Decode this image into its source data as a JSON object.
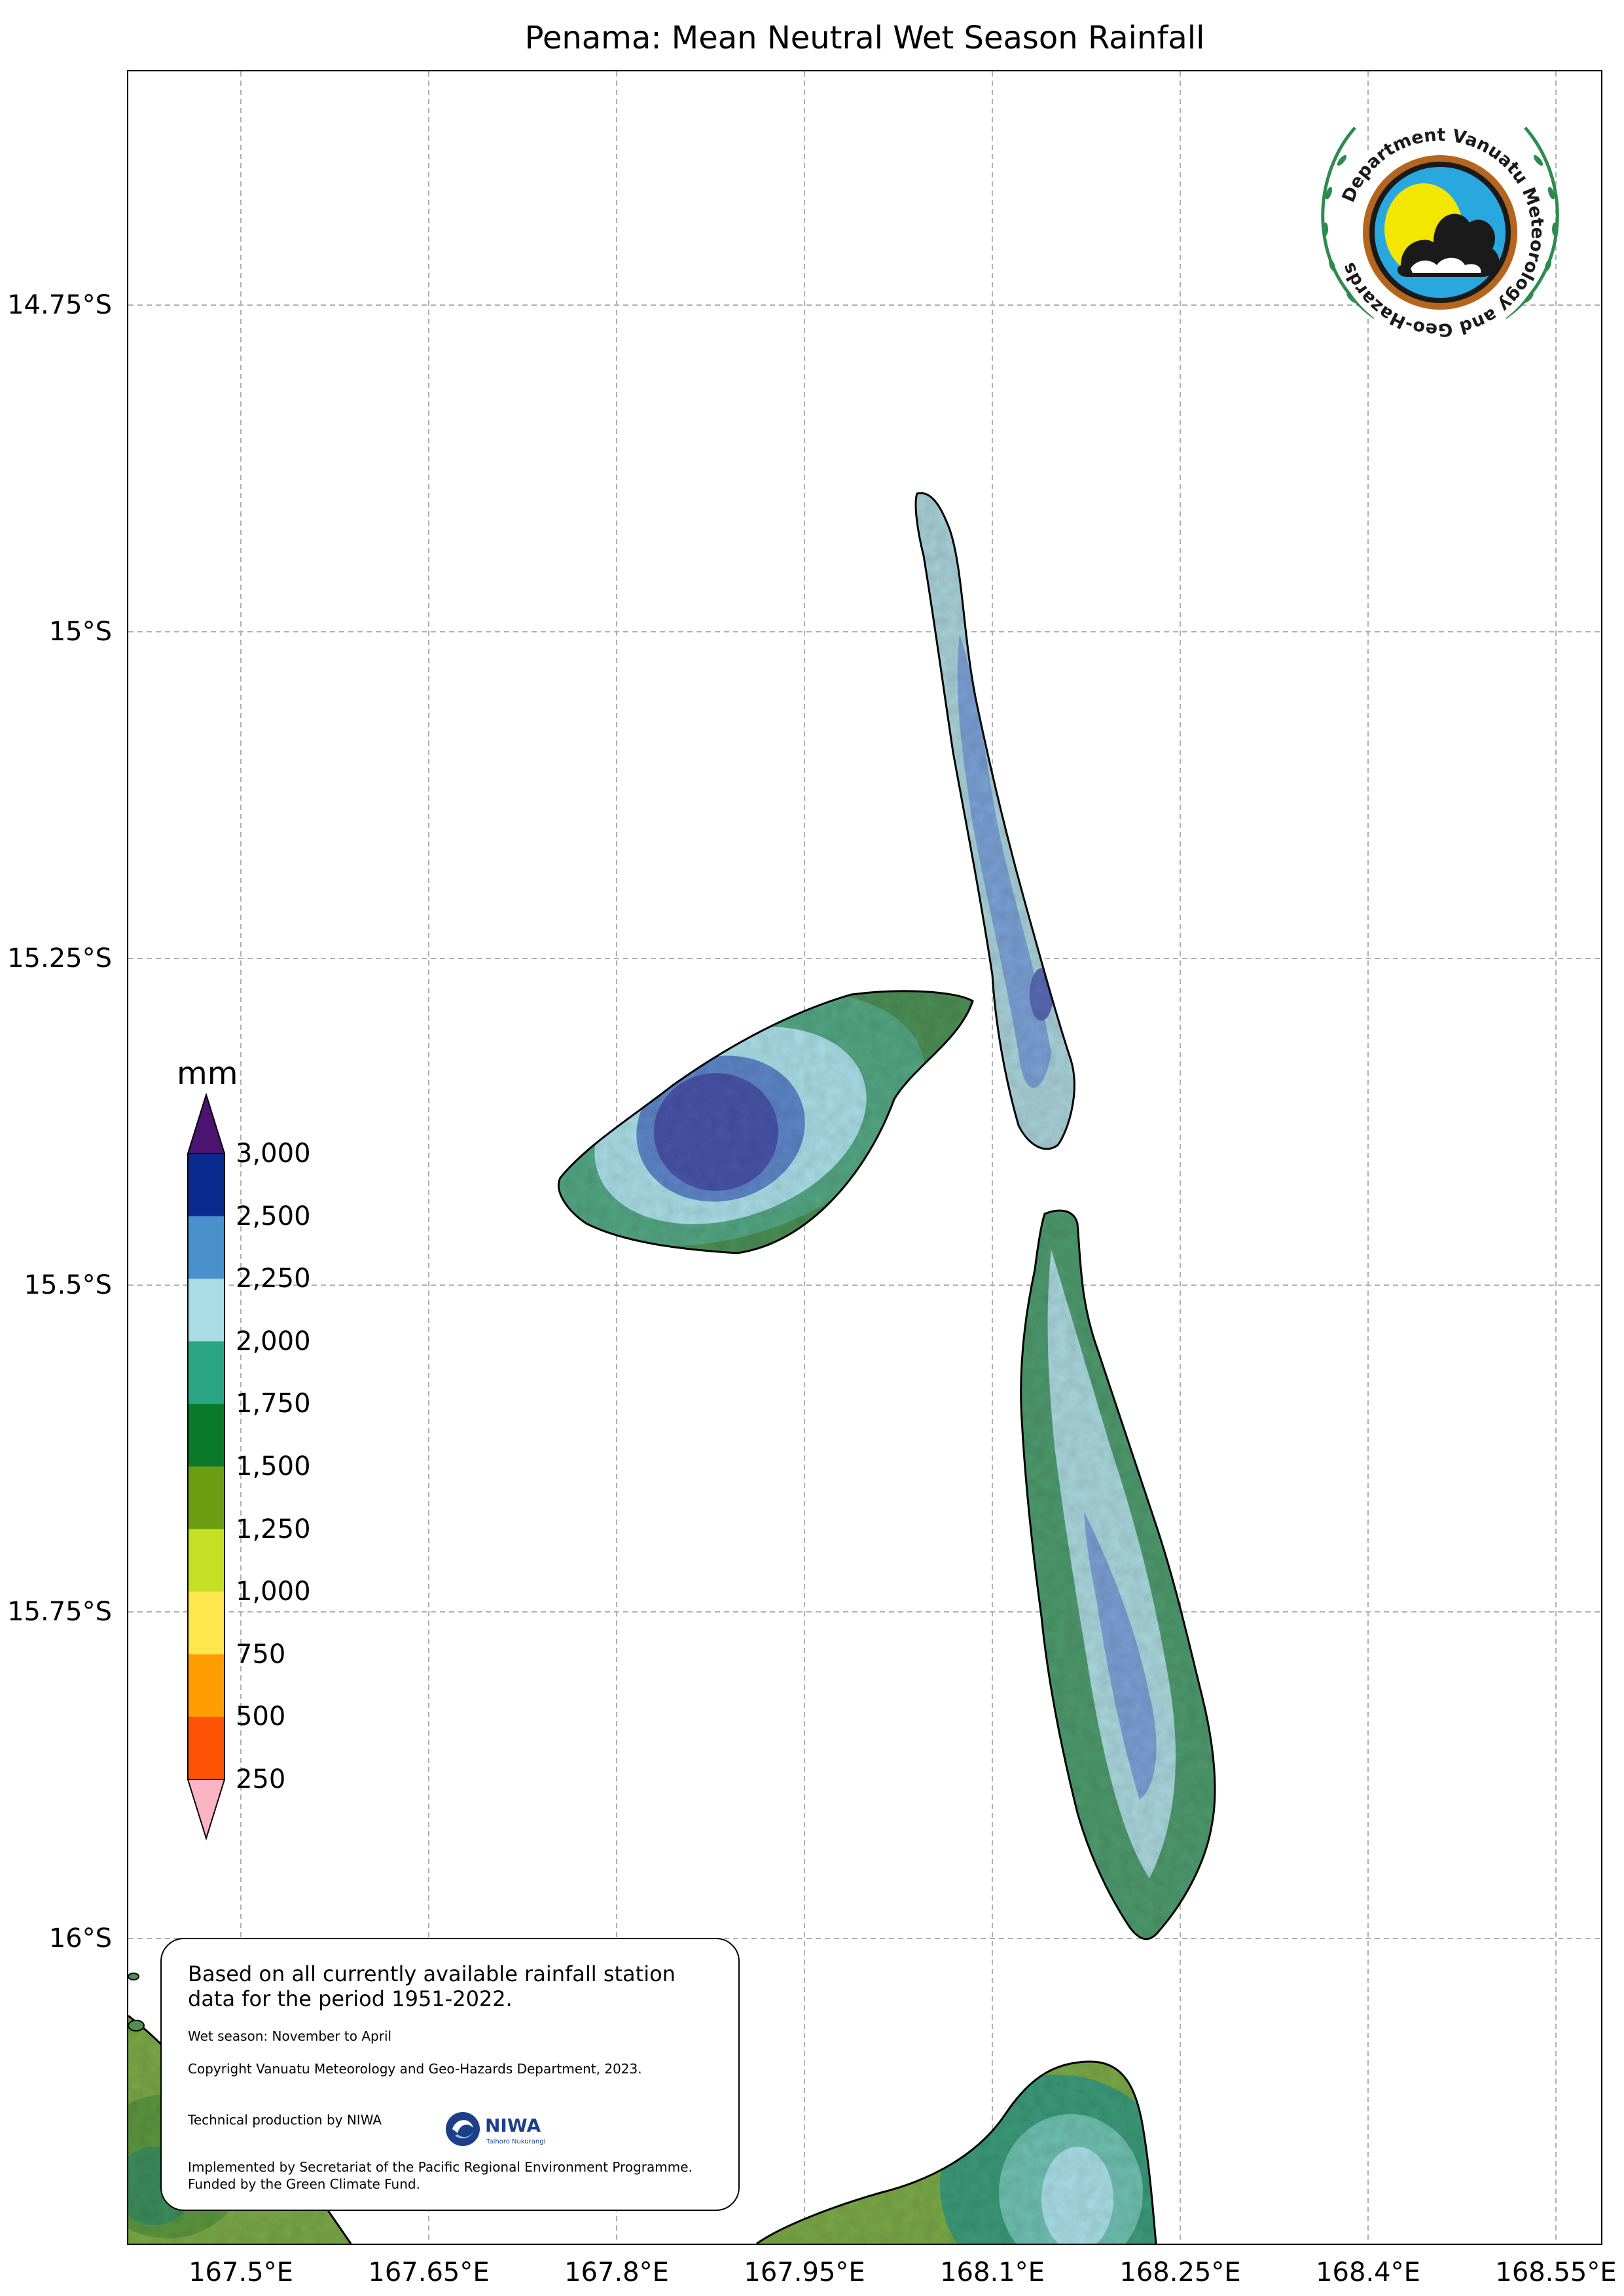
{
  "title": "Penama: Mean Neutral Wet Season Rainfall",
  "axes": {
    "lat_ticks": [
      "14.75°S",
      "15°S",
      "15.25°S",
      "15.5°S",
      "15.75°S",
      "16°S"
    ],
    "lon_ticks": [
      "167.5°E",
      "167.65°E",
      "167.8°E",
      "167.95°E",
      "168.1°E",
      "168.25°E",
      "168.4°E",
      "168.55°E"
    ]
  },
  "legend": {
    "unit": "mm",
    "labels": [
      "3,000",
      "2,500",
      "2,250",
      "2,000",
      "1,750",
      "1,500",
      "1,250",
      "1,000",
      "750",
      "500",
      "250"
    ],
    "colors": {
      "above_max": "#4a1470",
      "bins": [
        "#0b2a8f",
        "#4a90cd",
        "#a9dde6",
        "#2aa683",
        "#0a7a2a",
        "#6b9e12",
        "#c3e024",
        "#fde64e",
        "#fe9d04",
        "#fe5204"
      ],
      "below_min": "#fbb4c4"
    }
  },
  "info": {
    "main": "Based on all currently available rainfall station data for the period 1951-2022.",
    "season": "Wet season: November to April",
    "copyright": "Copyright Vanuatu Meteorology and Geo-Hazards Department, 2023.",
    "technical": "Technical production by NIWA",
    "implemented": "Implemented by Secretariat of the Pacific Regional Environment Programme.",
    "funded": "Funded by the Green Climate Fund."
  },
  "logos": {
    "vmgd_text": "Department Vanuatu Meteorology and Geo-Hazards",
    "niwa_text": "NIWA",
    "niwa_sub": "Taihoro Nukurangi"
  }
}
